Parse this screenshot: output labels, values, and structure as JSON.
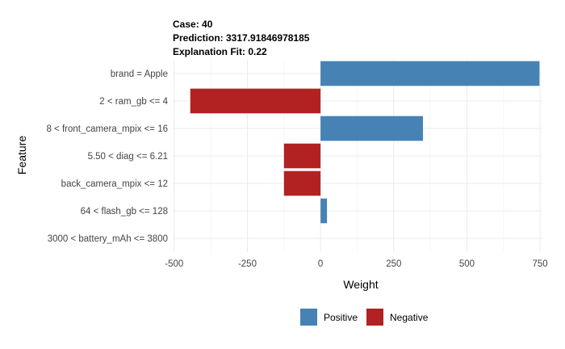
{
  "header": {
    "case_line": "Case: 40",
    "prediction_line": "Prediction: 3317.91846978185",
    "fit_line": "Explanation Fit: 0.22"
  },
  "chart_data": {
    "type": "bar",
    "orientation": "horizontal",
    "categories": [
      "brand = Apple",
      "2 < ram_gb <= 4",
      "8 < front_camera_mpix <= 16",
      "5.50 < diag <= 6.21",
      "back_camera_mpix <= 12",
      "64 < flash_gb <= 128",
      "3000 < battery_mAh <= 3800"
    ],
    "values": [
      748,
      -445,
      350,
      -125,
      -125,
      22,
      0
    ],
    "xlabel": "Weight",
    "ylabel": "Feature",
    "xlim": [
      -505,
      758
    ],
    "x_ticks": [
      -500,
      -250,
      0,
      250,
      500,
      750
    ],
    "x_tick_labels": [
      "-500",
      "-250",
      "0",
      "250",
      "500",
      "750"
    ],
    "grid": true,
    "legend_position": "bottom",
    "legend": [
      {
        "label": "Positive",
        "color": "#4682b4"
      },
      {
        "label": "Negative",
        "color": "#b22222"
      }
    ]
  }
}
